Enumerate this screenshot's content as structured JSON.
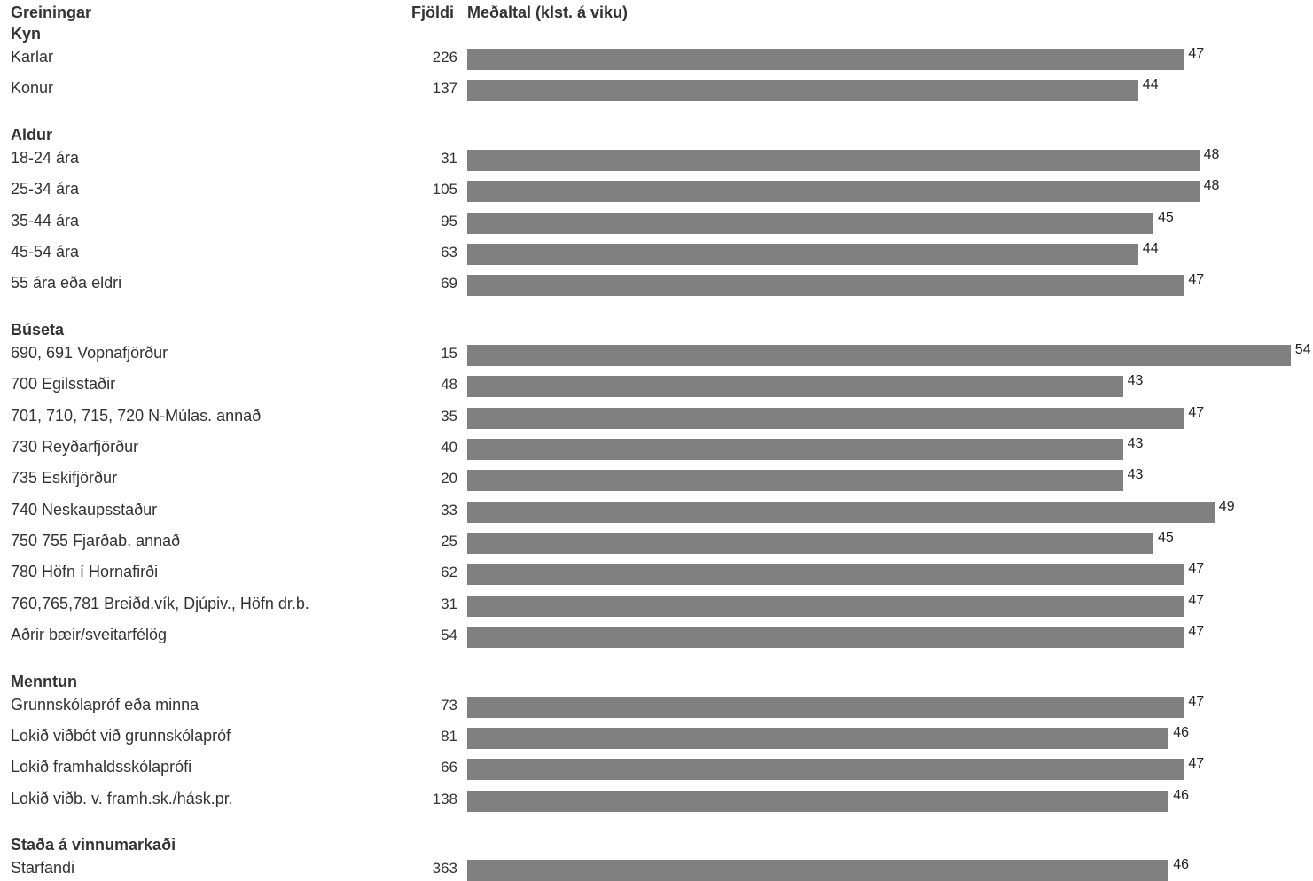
{
  "header": {
    "groups_label": "Greiningar",
    "count_label": "Fjöldi",
    "value_label": "Meðaltal (klst. á viku)"
  },
  "colors": {
    "bar": "#808080",
    "text": "#333333"
  },
  "chart_data": {
    "type": "bar",
    "orientation": "horizontal",
    "xlim": [
      0,
      54
    ],
    "grid": false,
    "legend": "none",
    "groups": [
      {
        "title": "Kyn",
        "rows": [
          {
            "label": "Karlar",
            "count": 226,
            "value": 47
          },
          {
            "label": "Konur",
            "count": 137,
            "value": 44
          }
        ]
      },
      {
        "title": "Aldur",
        "rows": [
          {
            "label": "18-24 ára",
            "count": 31,
            "value": 48
          },
          {
            "label": "25-34 ára",
            "count": 105,
            "value": 48
          },
          {
            "label": "35-44 ára",
            "count": 95,
            "value": 45
          },
          {
            "label": "45-54 ára",
            "count": 63,
            "value": 44
          },
          {
            "label": "55 ára eða eldri",
            "count": 69,
            "value": 47
          }
        ]
      },
      {
        "title": "Búseta",
        "rows": [
          {
            "label": "690, 691 Vopnafjörður",
            "count": 15,
            "value": 54
          },
          {
            "label": "700 Egilsstaðir",
            "count": 48,
            "value": 43
          },
          {
            "label": "701, 710, 715, 720 N-Múlas. annað",
            "count": 35,
            "value": 47
          },
          {
            "label": "730 Reyðarfjörður",
            "count": 40,
            "value": 43
          },
          {
            "label": "735 Eskifjörður",
            "count": 20,
            "value": 43
          },
          {
            "label": "740 Neskaupsstaður",
            "count": 33,
            "value": 49
          },
          {
            "label": "750 755 Fjarðab. annað",
            "count": 25,
            "value": 45
          },
          {
            "label": "780 Höfn í Hornafirði",
            "count": 62,
            "value": 47
          },
          {
            "label": "760,765,781 Breiðd.vík, Djúpiv., Höfn dr.b.",
            "count": 31,
            "value": 47
          },
          {
            "label": "Aðrir bæir/sveitarfélög",
            "count": 54,
            "value": 47
          }
        ]
      },
      {
        "title": "Menntun",
        "rows": [
          {
            "label": "Grunnskólapróf eða minna",
            "count": 73,
            "value": 47
          },
          {
            "label": "Lokið viðbót við grunnskólapróf",
            "count": 81,
            "value": 46
          },
          {
            "label": "Lokið framhaldsskólaprófi",
            "count": 66,
            "value": 47
          },
          {
            "label": "Lokið viðb. v. framh.sk./hásk.pr.",
            "count": 138,
            "value": 46
          }
        ]
      },
      {
        "title": "Staða á vinnumarkaði",
        "rows": [
          {
            "label": "Starfandi",
            "count": 363,
            "value": 46
          }
        ]
      }
    ]
  }
}
